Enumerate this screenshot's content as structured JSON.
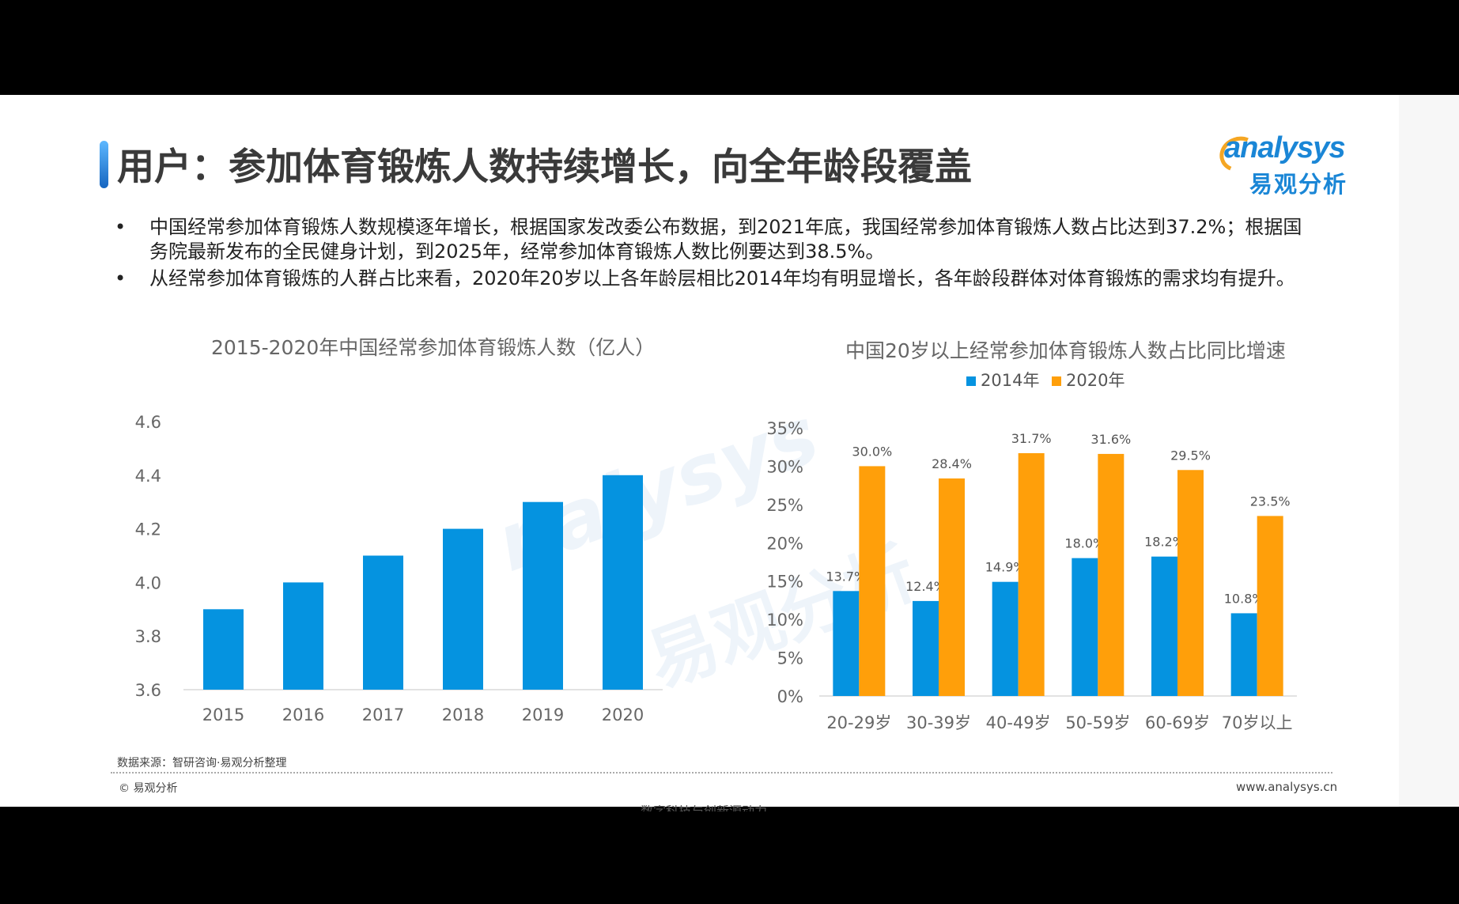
{
  "slide": {
    "title": "用户：参加体育锻炼人数持续增长，向全年龄段覆盖",
    "logo": {
      "en": "analysys",
      "cn": "易观分析"
    },
    "watermark": {
      "en": "nalysys",
      "cn": "易观分析"
    },
    "bullets": [
      "中国经常参加体育锻炼人数规模逐年增长，根据国家发改委公布数据，到2021年底，我国经常参加体育锻炼人数占比达到37.2%；根据国务院最新发布的全民健身计划，到2025年，经常参加体育锻炼人数比例要达到38.5%。",
      "从经常参加体育锻炼的人群占比来看，2020年20岁以上各年龄层相比2014年均有明显增长，各年龄段群体对体育锻炼的需求均有提升。"
    ],
    "bullet_symbol": "•",
    "source": "数据来源：智研咨询·易观分析整理",
    "copyright": "© 易观分析",
    "website": "www.analysys.cn",
    "bottom_partial": "数字科技与创新源动力"
  },
  "chart_data": [
    {
      "type": "bar",
      "title": "2015-2020年中国经常参加体育锻炼人数（亿人）",
      "categories": [
        "2015",
        "2016",
        "2017",
        "2018",
        "2019",
        "2020"
      ],
      "values": [
        3.9,
        4.0,
        4.1,
        4.2,
        4.3,
        4.4
      ],
      "ylim": [
        3.6,
        4.6
      ],
      "yticks": [
        "3.6",
        "3.8",
        "4.0",
        "4.2",
        "4.4",
        "4.6"
      ],
      "color": "#0593e0",
      "grid": false
    },
    {
      "type": "bar",
      "title": "中国20岁以上经常参加体育锻炼人数占比同比增速",
      "categories": [
        "20-29岁",
        "30-39岁",
        "40-49岁",
        "50-59岁",
        "60-69岁",
        "70岁以上"
      ],
      "series": [
        {
          "name": "2014年",
          "values": [
            13.7,
            12.4,
            14.9,
            18.0,
            18.2,
            10.8
          ],
          "labels": [
            "13.7%",
            "12.4%",
            "14.9%",
            "18.0%",
            "18.2%",
            "10.8%"
          ],
          "color": "#0593e0"
        },
        {
          "name": "2020年",
          "values": [
            30.0,
            28.4,
            31.7,
            31.6,
            29.5,
            23.5
          ],
          "labels": [
            "30.0%",
            "28.4%",
            "31.7%",
            "31.6%",
            "29.5%",
            "23.5%"
          ],
          "color": "#ff9f0a"
        }
      ],
      "ylim": [
        0,
        35
      ],
      "yticks": [
        "0%",
        "5%",
        "10%",
        "15%",
        "20%",
        "25%",
        "30%",
        "35%"
      ],
      "legend": "top-center",
      "grid": false
    }
  ]
}
